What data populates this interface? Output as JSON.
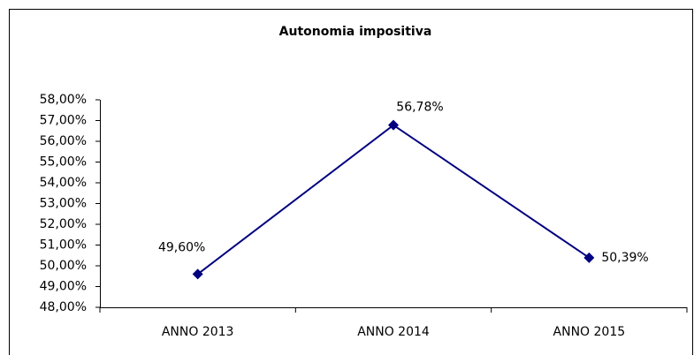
{
  "chart_data": {
    "type": "line",
    "title": "Autonomia impositiva",
    "categories": [
      "ANNO 2013",
      "ANNO 2014",
      "ANNO 2015"
    ],
    "series": [
      {
        "name": "Autonomia impositiva",
        "color": "#000080",
        "values": [
          49.6,
          56.78,
          50.39
        ],
        "value_labels": [
          "49,60%",
          "56,78%",
          "50,39%"
        ]
      }
    ],
    "ylim": [
      48,
      58
    ],
    "yticks": [
      {
        "value": 48,
        "label": "48,00%"
      },
      {
        "value": 49,
        "label": "49,00%"
      },
      {
        "value": 50,
        "label": "50,00%"
      },
      {
        "value": 51,
        "label": "51,00%"
      },
      {
        "value": 52,
        "label": "52,00%"
      },
      {
        "value": 53,
        "label": "53,00%"
      },
      {
        "value": 54,
        "label": "54,00%"
      },
      {
        "value": 55,
        "label": "55,00%"
      },
      {
        "value": 56,
        "label": "56,00%"
      },
      {
        "value": 57,
        "label": "57,00%"
      },
      {
        "value": 58,
        "label": "58,00%"
      }
    ],
    "grid": false
  }
}
